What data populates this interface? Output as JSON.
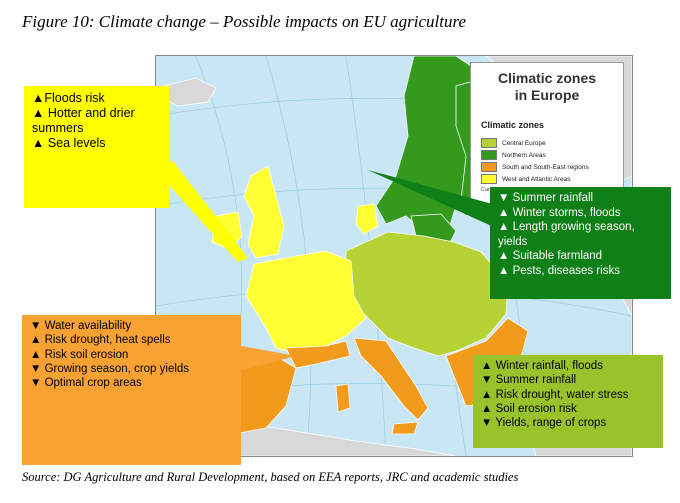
{
  "title": "Figure 10: Climate change – Possible impacts on EU agriculture",
  "source": "Source: DG Agriculture and Rural Development, based on EEA reports, JRC and academic studies",
  "colors": {
    "sea": "#c8e6f3",
    "land_outside": "#d8d8d8",
    "central": "#b5d334",
    "northern": "#339a1d",
    "south": "#f19a1c",
    "west": "#ffff33",
    "box_west": "#ffff00",
    "box_north": "#0f7f17",
    "box_south": "#f7a233",
    "box_central": "#99c22b"
  },
  "legend": {
    "title": "Climatic zones\nin Europe",
    "subtitle": "Climatic zones",
    "items": [
      {
        "label": "Central Europe",
        "color": "#b5d334"
      },
      {
        "label": "Northern Areas",
        "color": "#339a1d"
      },
      {
        "label": "South and South-East regions",
        "color": "#f19a1c"
      },
      {
        "label": "West and Atlantic Areas",
        "color": "#ffff33"
      }
    ],
    "cut_text": "Cartog..."
  },
  "boxes": {
    "west": [
      "▲Floods risk",
      "▲ Hotter and drier\nsummers",
      "▲ Sea levels"
    ],
    "north": [
      "▼ Summer rainfall",
      "▲ Winter storms, floods",
      "▲ Length growing season,\nyields",
      "▲ Suitable farmland",
      "▲ Pests, diseases risks"
    ],
    "south": [
      "▼ Water availability",
      "▲ Risk drought, heat spells",
      "▲ Risk soil erosion",
      "▼ Growing season, crop yields",
      "▼ Optimal crop areas"
    ],
    "central": [
      "▲ Winter rainfall, floods",
      "▼ Summer rainfall",
      "▲ Risk drought, water stress",
      "▲ Soil erosion risk",
      "▼ Yields, range of crops"
    ]
  }
}
